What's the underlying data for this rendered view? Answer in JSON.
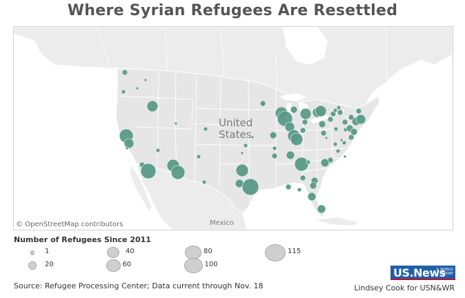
{
  "title": "Where Syrian Refugees Are Resettled",
  "map": {
    "country_label_line1": "United",
    "country_label_line2": "States",
    "mexico_label": "Mexico",
    "attribution": "© OpenStreetMap contributors",
    "bubble_color": "#5a9a87",
    "land_color": "#e8e8e8",
    "water_color": "#ffffff"
  },
  "legend": {
    "title": "Number of Refugees Since 2011",
    "items": [
      {
        "label": "1",
        "value": 1
      },
      {
        "label": "20",
        "value": 20
      },
      {
        "label": "40",
        "value": 40
      },
      {
        "label": "60",
        "value": 60
      },
      {
        "label": "80",
        "value": 80
      },
      {
        "label": "100",
        "value": 100
      },
      {
        "label": "115",
        "value": 115
      }
    ]
  },
  "source": "Source: Refugee Processing Center; Data current through Nov. 18",
  "credit": "Lindsey Cook for USN&WR",
  "logo": {
    "main": "US.News",
    "sub_line1": "& WORLD REPORT"
  }
}
